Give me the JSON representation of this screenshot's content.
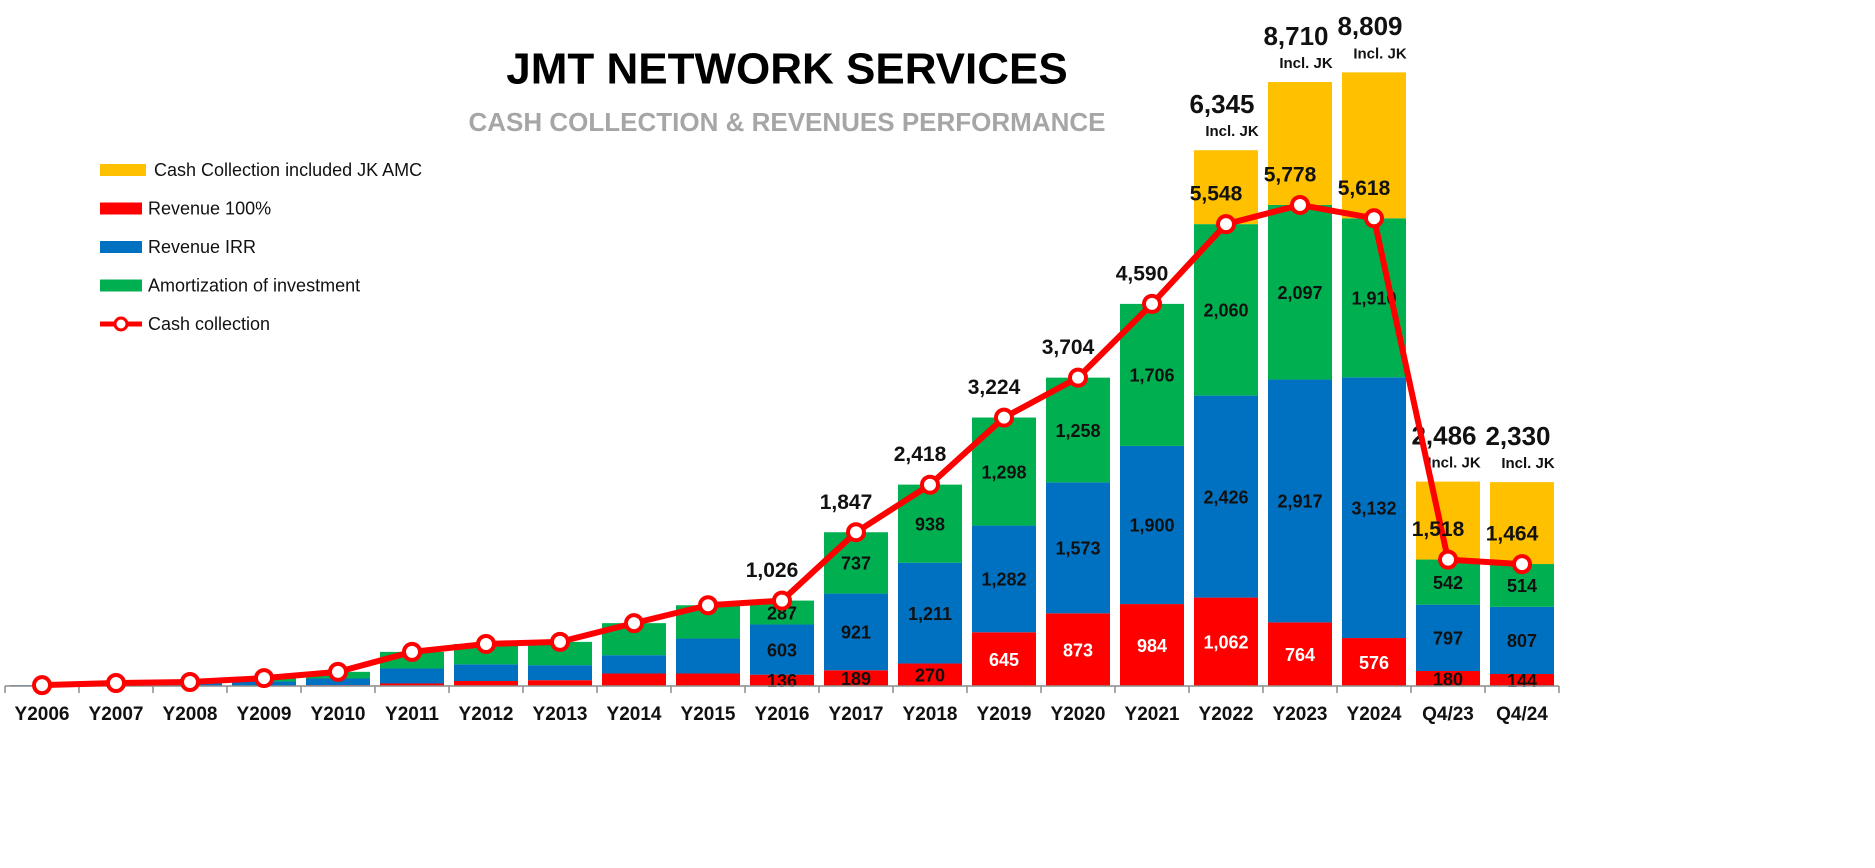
{
  "chart_data": {
    "type": "bar",
    "title": "JMT NETWORK SERVICES",
    "subtitle": "CASH COLLECTION & REVENUES PERFORMANCE",
    "categories": [
      "Y2006",
      "Y2007",
      "Y2008",
      "Y2009",
      "Y2010",
      "Y2011",
      "Y2012",
      "Y2013",
      "Y2014",
      "Y2015",
      "Y2016",
      "Y2017",
      "Y2018",
      "Y2019",
      "Y2020",
      "Y2021",
      "Y2022",
      "Y2023",
      "Y2024",
      "Q4/23",
      "Q4/24"
    ],
    "ylim": [
      0,
      8000
    ],
    "series": [
      {
        "name": "Revenue 100%",
        "color": "#FF0000",
        "values": [
          0,
          0,
          0,
          5,
          10,
          30,
          60,
          70,
          150,
          150,
          136,
          189,
          270,
          645,
          873,
          984,
          1062,
          764,
          576,
          180,
          144
        ],
        "value_labels": [
          null,
          null,
          null,
          null,
          null,
          null,
          null,
          null,
          null,
          null,
          "136",
          "189",
          "270",
          "645",
          "873",
          "984",
          "1,062",
          "764",
          "576",
          "180",
          "144"
        ]
      },
      {
        "name": "Revenue IRR",
        "color": "#0070C0",
        "values": [
          10,
          20,
          30,
          50,
          80,
          180,
          200,
          180,
          220,
          420,
          603,
          921,
          1211,
          1282,
          1573,
          1900,
          2426,
          2917,
          3132,
          797,
          807
        ],
        "value_labels": [
          null,
          null,
          null,
          null,
          null,
          null,
          null,
          null,
          null,
          null,
          "603",
          "921",
          "1,211",
          "1,282",
          "1,573",
          "1,900",
          "2,426",
          "2,917",
          "3,132",
          "797",
          "807"
        ]
      },
      {
        "name": "Amortization of investment",
        "color": "#00B050",
        "values": [
          0,
          16,
          18,
          40,
          80,
          200,
          245,
          280,
          385,
          400,
          287,
          737,
          938,
          1298,
          1258,
          1706,
          2060,
          2097,
          1910,
          542,
          514
        ],
        "value_labels": [
          null,
          null,
          null,
          null,
          null,
          null,
          null,
          null,
          null,
          null,
          "287",
          "737",
          "938",
          "1,298",
          "1,258",
          "1,706",
          "2,060",
          "2,097",
          "1,910",
          "542",
          "514"
        ]
      },
      {
        "name": "Cash Collection included JK AMC",
        "color": "#FFC000",
        "values": [
          null,
          null,
          null,
          null,
          null,
          null,
          null,
          null,
          null,
          null,
          null,
          null,
          null,
          null,
          null,
          null,
          888,
          1477,
          1753,
          936,
          984
        ]
      },
      {
        "name": "Cash collection",
        "color": "#FF0000",
        "type": "line",
        "values": [
          10,
          36,
          48,
          95,
          170,
          410,
          505,
          530,
          755,
          970,
          1026,
          1847,
          2418,
          3224,
          3704,
          4590,
          5548,
          5778,
          5618,
          1518,
          1464
        ],
        "value_labels": [
          null,
          null,
          null,
          null,
          null,
          null,
          null,
          null,
          null,
          null,
          "1,026",
          "1,847",
          "2,418",
          "3,224",
          "3,704",
          "4,590",
          "5,548",
          "5,778",
          "5,618",
          "1,518",
          "1,464"
        ]
      }
    ],
    "totals": [
      null,
      null,
      null,
      null,
      null,
      null,
      null,
      null,
      null,
      null,
      null,
      null,
      null,
      null,
      null,
      null,
      6345,
      8710,
      8809,
      2486,
      2330
    ],
    "total_labels": [
      null,
      null,
      null,
      null,
      null,
      null,
      null,
      null,
      null,
      null,
      null,
      null,
      null,
      null,
      null,
      null,
      "6,345",
      "8,710",
      "8,809",
      "2,486",
      "2,330"
    ],
    "total_note": "Incl. JK"
  }
}
